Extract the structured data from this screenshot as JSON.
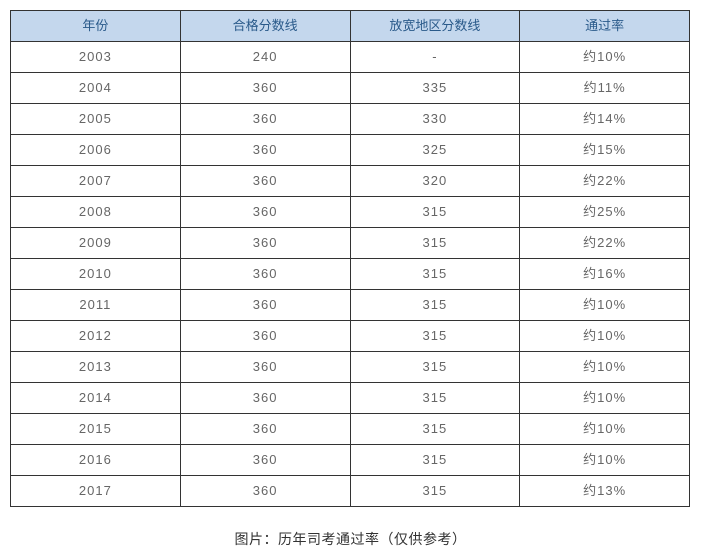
{
  "table": {
    "columns": [
      "年份",
      "合格分数线",
      "放宽地区分数线",
      "通过率"
    ],
    "rows": [
      [
        "2003",
        "240",
        "-",
        "约10%"
      ],
      [
        "2004",
        "360",
        "335",
        "约11%"
      ],
      [
        "2005",
        "360",
        "330",
        "约14%"
      ],
      [
        "2006",
        "360",
        "325",
        "约15%"
      ],
      [
        "2007",
        "360",
        "320",
        "约22%"
      ],
      [
        "2008",
        "360",
        "315",
        "约25%"
      ],
      [
        "2009",
        "360",
        "315",
        "约22%"
      ],
      [
        "2010",
        "360",
        "315",
        "约16%"
      ],
      [
        "2011",
        "360",
        "315",
        "约10%"
      ],
      [
        "2012",
        "360",
        "315",
        "约10%"
      ],
      [
        "2013",
        "360",
        "315",
        "约10%"
      ],
      [
        "2014",
        "360",
        "315",
        "约10%"
      ],
      [
        "2015",
        "360",
        "315",
        "约10%"
      ],
      [
        "2016",
        "360",
        "315",
        "约10%"
      ],
      [
        "2017",
        "360",
        "315",
        "约13%"
      ]
    ],
    "header_bg": "#c4d7ed",
    "header_text_color": "#2a5a8a",
    "body_text_color": "#666666",
    "border_color": "#333333",
    "col_widths_pct": [
      25,
      25,
      25,
      25
    ]
  },
  "caption": "图片：历年司考通过率（仅供参考）"
}
